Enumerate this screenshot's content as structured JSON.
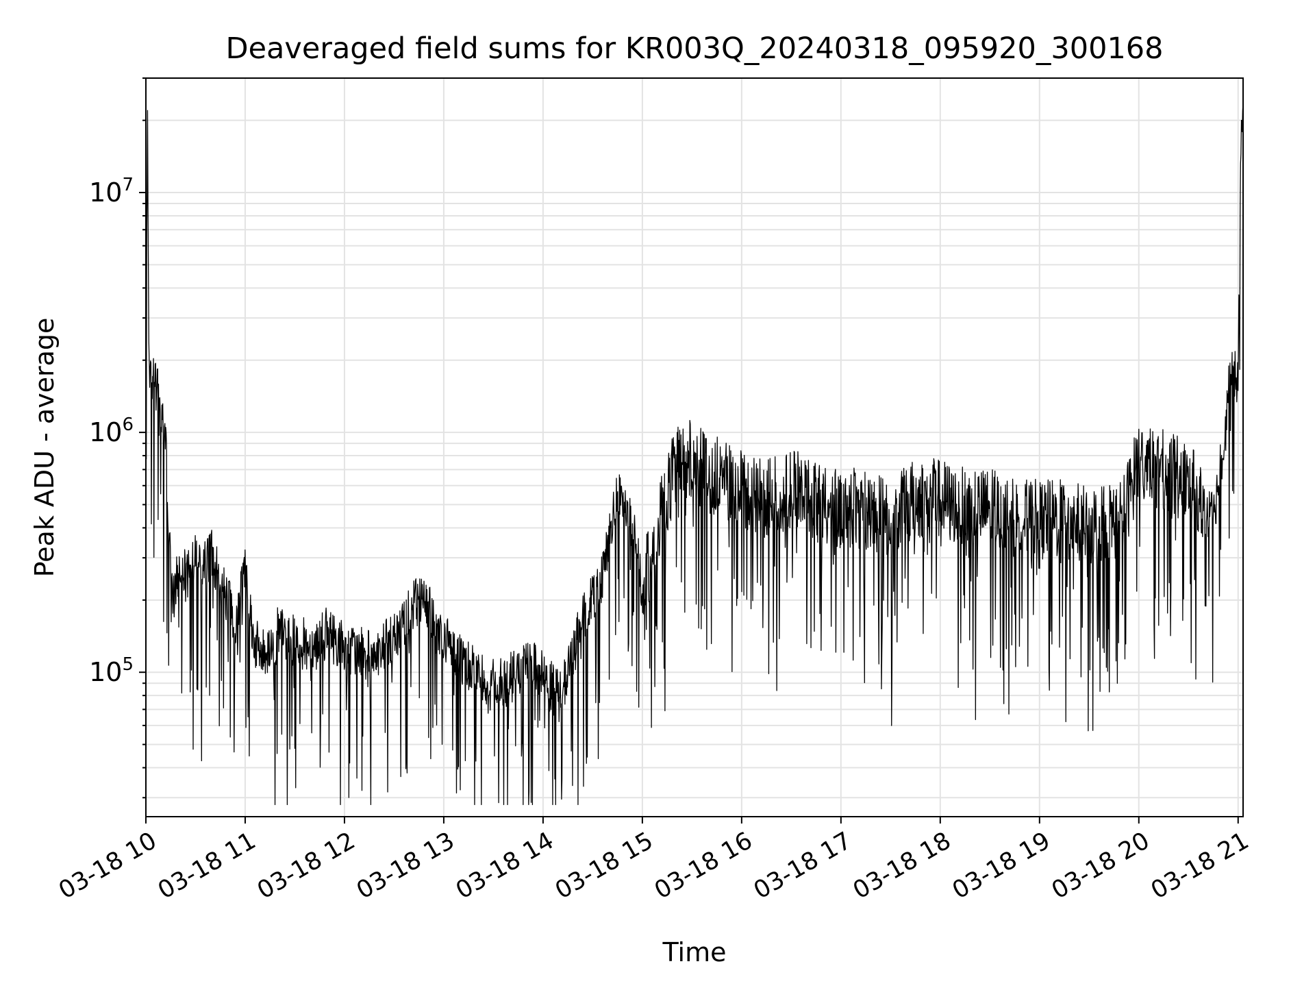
{
  "chart_data": {
    "type": "line",
    "title": "Deaveraged field sums for KR003Q_20240318_095920_300168",
    "xlabel": "Time",
    "ylabel": "Peak ADU - average",
    "yscale": "log",
    "ylim": [
      25000,
      30000000
    ],
    "xlim": [
      "2024-03-18 10:00",
      "2024-03-18 21:03"
    ],
    "grid": true,
    "line_color": "#000000",
    "x_ticks": [
      "03-18 10",
      "03-18 11",
      "03-18 12",
      "03-18 13",
      "03-18 14",
      "03-18 15",
      "03-18 16",
      "03-18 17",
      "03-18 18",
      "03-18 19",
      "03-18 20",
      "03-18 21"
    ],
    "y_ticks": [
      {
        "value": 100000,
        "base": "10",
        "exp": "5"
      },
      {
        "value": 1000000,
        "base": "10",
        "exp": "6"
      },
      {
        "value": 10000000,
        "base": "10",
        "exp": "7"
      }
    ],
    "series": [
      {
        "x": [
          "2024-03-18 10:00",
          "2024-03-18 10:01",
          "2024-03-18 10:02",
          "2024-03-18 10:05",
          "2024-03-18 10:08",
          "2024-03-18 10:10",
          "2024-03-18 10:12",
          "2024-03-18 10:13",
          "2024-03-18 10:15",
          "2024-03-18 10:17",
          "2024-03-18 10:20",
          "2024-03-18 10:25",
          "2024-03-18 10:30",
          "2024-03-18 10:35",
          "2024-03-18 10:40",
          "2024-03-18 10:45",
          "2024-03-18 10:50",
          "2024-03-18 10:55",
          "2024-03-18 11:00",
          "2024-03-18 11:05",
          "2024-03-18 11:10",
          "2024-03-18 11:20",
          "2024-03-18 11:30",
          "2024-03-18 11:40",
          "2024-03-18 11:50",
          "2024-03-18 12:00",
          "2024-03-18 12:15",
          "2024-03-18 12:30",
          "2024-03-18 12:45",
          "2024-03-18 13:00",
          "2024-03-18 13:15",
          "2024-03-18 13:30",
          "2024-03-18 13:45",
          "2024-03-18 13:55",
          "2024-03-18 14:10",
          "2024-03-18 14:25",
          "2024-03-18 14:35",
          "2024-03-18 14:45",
          "2024-03-18 14:55",
          "2024-03-18 15:00",
          "2024-03-18 15:10",
          "2024-03-18 15:20",
          "2024-03-18 15:30",
          "2024-03-18 15:40",
          "2024-03-18 15:50",
          "2024-03-18 16:00",
          "2024-03-18 16:15",
          "2024-03-18 16:30",
          "2024-03-18 16:45",
          "2024-03-18 17:00",
          "2024-03-18 17:15",
          "2024-03-18 17:30",
          "2024-03-18 17:45",
          "2024-03-18 18:00",
          "2024-03-18 18:15",
          "2024-03-18 18:30",
          "2024-03-18 18:45",
          "2024-03-18 19:00",
          "2024-03-18 19:15",
          "2024-03-18 19:30",
          "2024-03-18 19:40",
          "2024-03-18 19:50",
          "2024-03-18 20:00",
          "2024-03-18 20:10",
          "2024-03-18 20:20",
          "2024-03-18 20:30",
          "2024-03-18 20:40",
          "2024-03-18 20:45",
          "2024-03-18 20:50",
          "2024-03-18 20:55",
          "2024-03-18 21:00",
          "2024-03-18 21:02"
        ],
        "y": [
          1500000,
          22000000,
          1800000,
          1700000,
          1400000,
          1200000,
          900000,
          600000,
          250000,
          220000,
          280000,
          250000,
          300000,
          280000,
          320000,
          250000,
          200000,
          160000,
          300000,
          140000,
          120000,
          150000,
          140000,
          130000,
          150000,
          130000,
          120000,
          140000,
          220000,
          140000,
          110000,
          90000,
          100000,
          110000,
          80000,
          180000,
          250000,
          550000,
          400000,
          220000,
          450000,
          750000,
          800000,
          700000,
          650000,
          600000,
          550000,
          600000,
          550000,
          500000,
          500000,
          450000,
          550000,
          550000,
          500000,
          500000,
          450000,
          450000,
          450000,
          420000,
          450000,
          450000,
          800000,
          750000,
          700000,
          650000,
          500000,
          450000,
          800000,
          1700000,
          1800000,
          20000000
        ]
      }
    ]
  }
}
